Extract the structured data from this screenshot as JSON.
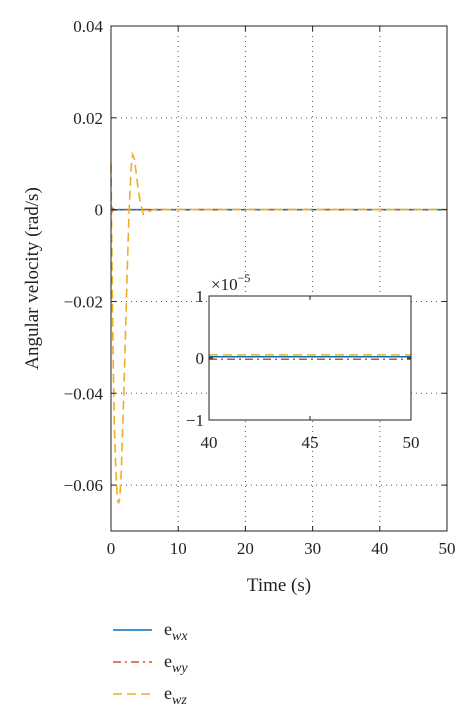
{
  "chart_data": {
    "type": "line",
    "xlabel": "Time (s)",
    "ylabel": "Angular velocity (rad/s)",
    "xlim": [
      0,
      50
    ],
    "ylim": [
      -0.07,
      0.04
    ],
    "xticks": [
      0,
      10,
      20,
      30,
      40,
      50
    ],
    "xtick_labels": [
      "0",
      "10",
      "20",
      "30",
      "40",
      "50"
    ],
    "yticks": [
      -0.06,
      -0.04,
      -0.02,
      0,
      0.02,
      0.04
    ],
    "ytick_labels": [
      "−0.06",
      "−0.04",
      "−0.02",
      "0",
      "0.02",
      "0.04"
    ],
    "grid": true,
    "legend_position": "bottom-left, outside plot",
    "series": [
      {
        "name": "e",
        "name_sub": "wx",
        "color": "#0072BD",
        "style": "solid",
        "x": [
          0,
          0.1,
          0.2,
          0.4,
          0.7,
          1,
          2,
          5,
          50
        ],
        "y": [
          0,
          0.0004,
          -0.0003,
          0.0001,
          -0.0001,
          0,
          0,
          0,
          0
        ]
      },
      {
        "name": "e",
        "name_sub": "wy",
        "color": "#D95319",
        "style": "dashdot",
        "x": [
          0,
          0.1,
          0.2,
          0.4,
          0.7,
          1,
          2,
          5,
          50
        ],
        "y": [
          0,
          -0.0004,
          0.0003,
          -0.0001,
          0.0001,
          0,
          0,
          0,
          0
        ]
      },
      {
        "name": "e",
        "name_sub": "wz",
        "color": "#EDB120",
        "style": "dashed",
        "x": [
          0,
          0.1,
          0.2,
          0.35,
          0.5,
          0.7,
          0.9,
          1.1,
          1.3,
          1.5,
          1.8,
          2.1,
          2.4,
          2.7,
          3.0,
          3.2,
          3.5,
          3.9,
          4.3,
          4.8,
          5.5,
          6.5,
          8,
          10,
          50
        ],
        "y": [
          0.01,
          -0.005,
          -0.02,
          -0.035,
          -0.047,
          -0.056,
          -0.062,
          -0.064,
          -0.063,
          -0.058,
          -0.045,
          -0.03,
          -0.014,
          0.0,
          0.009,
          0.012,
          0.011,
          0.006,
          0.002,
          -0.001,
          -0.0005,
          0.0001,
          0,
          0,
          0
        ]
      }
    ],
    "inset": {
      "xlim": [
        40,
        50
      ],
      "ylim": [
        -1,
        1
      ],
      "xticks": [
        40,
        45,
        50
      ],
      "xtick_labels": [
        "40",
        "45",
        "50"
      ],
      "yticks": [
        -1,
        0,
        1
      ],
      "ytick_labels": [
        "−1",
        "0",
        "1"
      ],
      "scale_label": "×10",
      "scale_exponent": "−5",
      "series": [
        {
          "color": "#0072BD",
          "style": "solid",
          "x": [
            40,
            50
          ],
          "y": [
            0.02,
            0.02
          ]
        },
        {
          "color": "#D95319",
          "style": "dashdot",
          "x": [
            40,
            50
          ],
          "y": [
            -0.02,
            -0.02
          ]
        },
        {
          "color": "#EDB120",
          "style": "dashed",
          "x": [
            40,
            50
          ],
          "y": [
            0.05,
            0.05
          ]
        }
      ]
    }
  }
}
